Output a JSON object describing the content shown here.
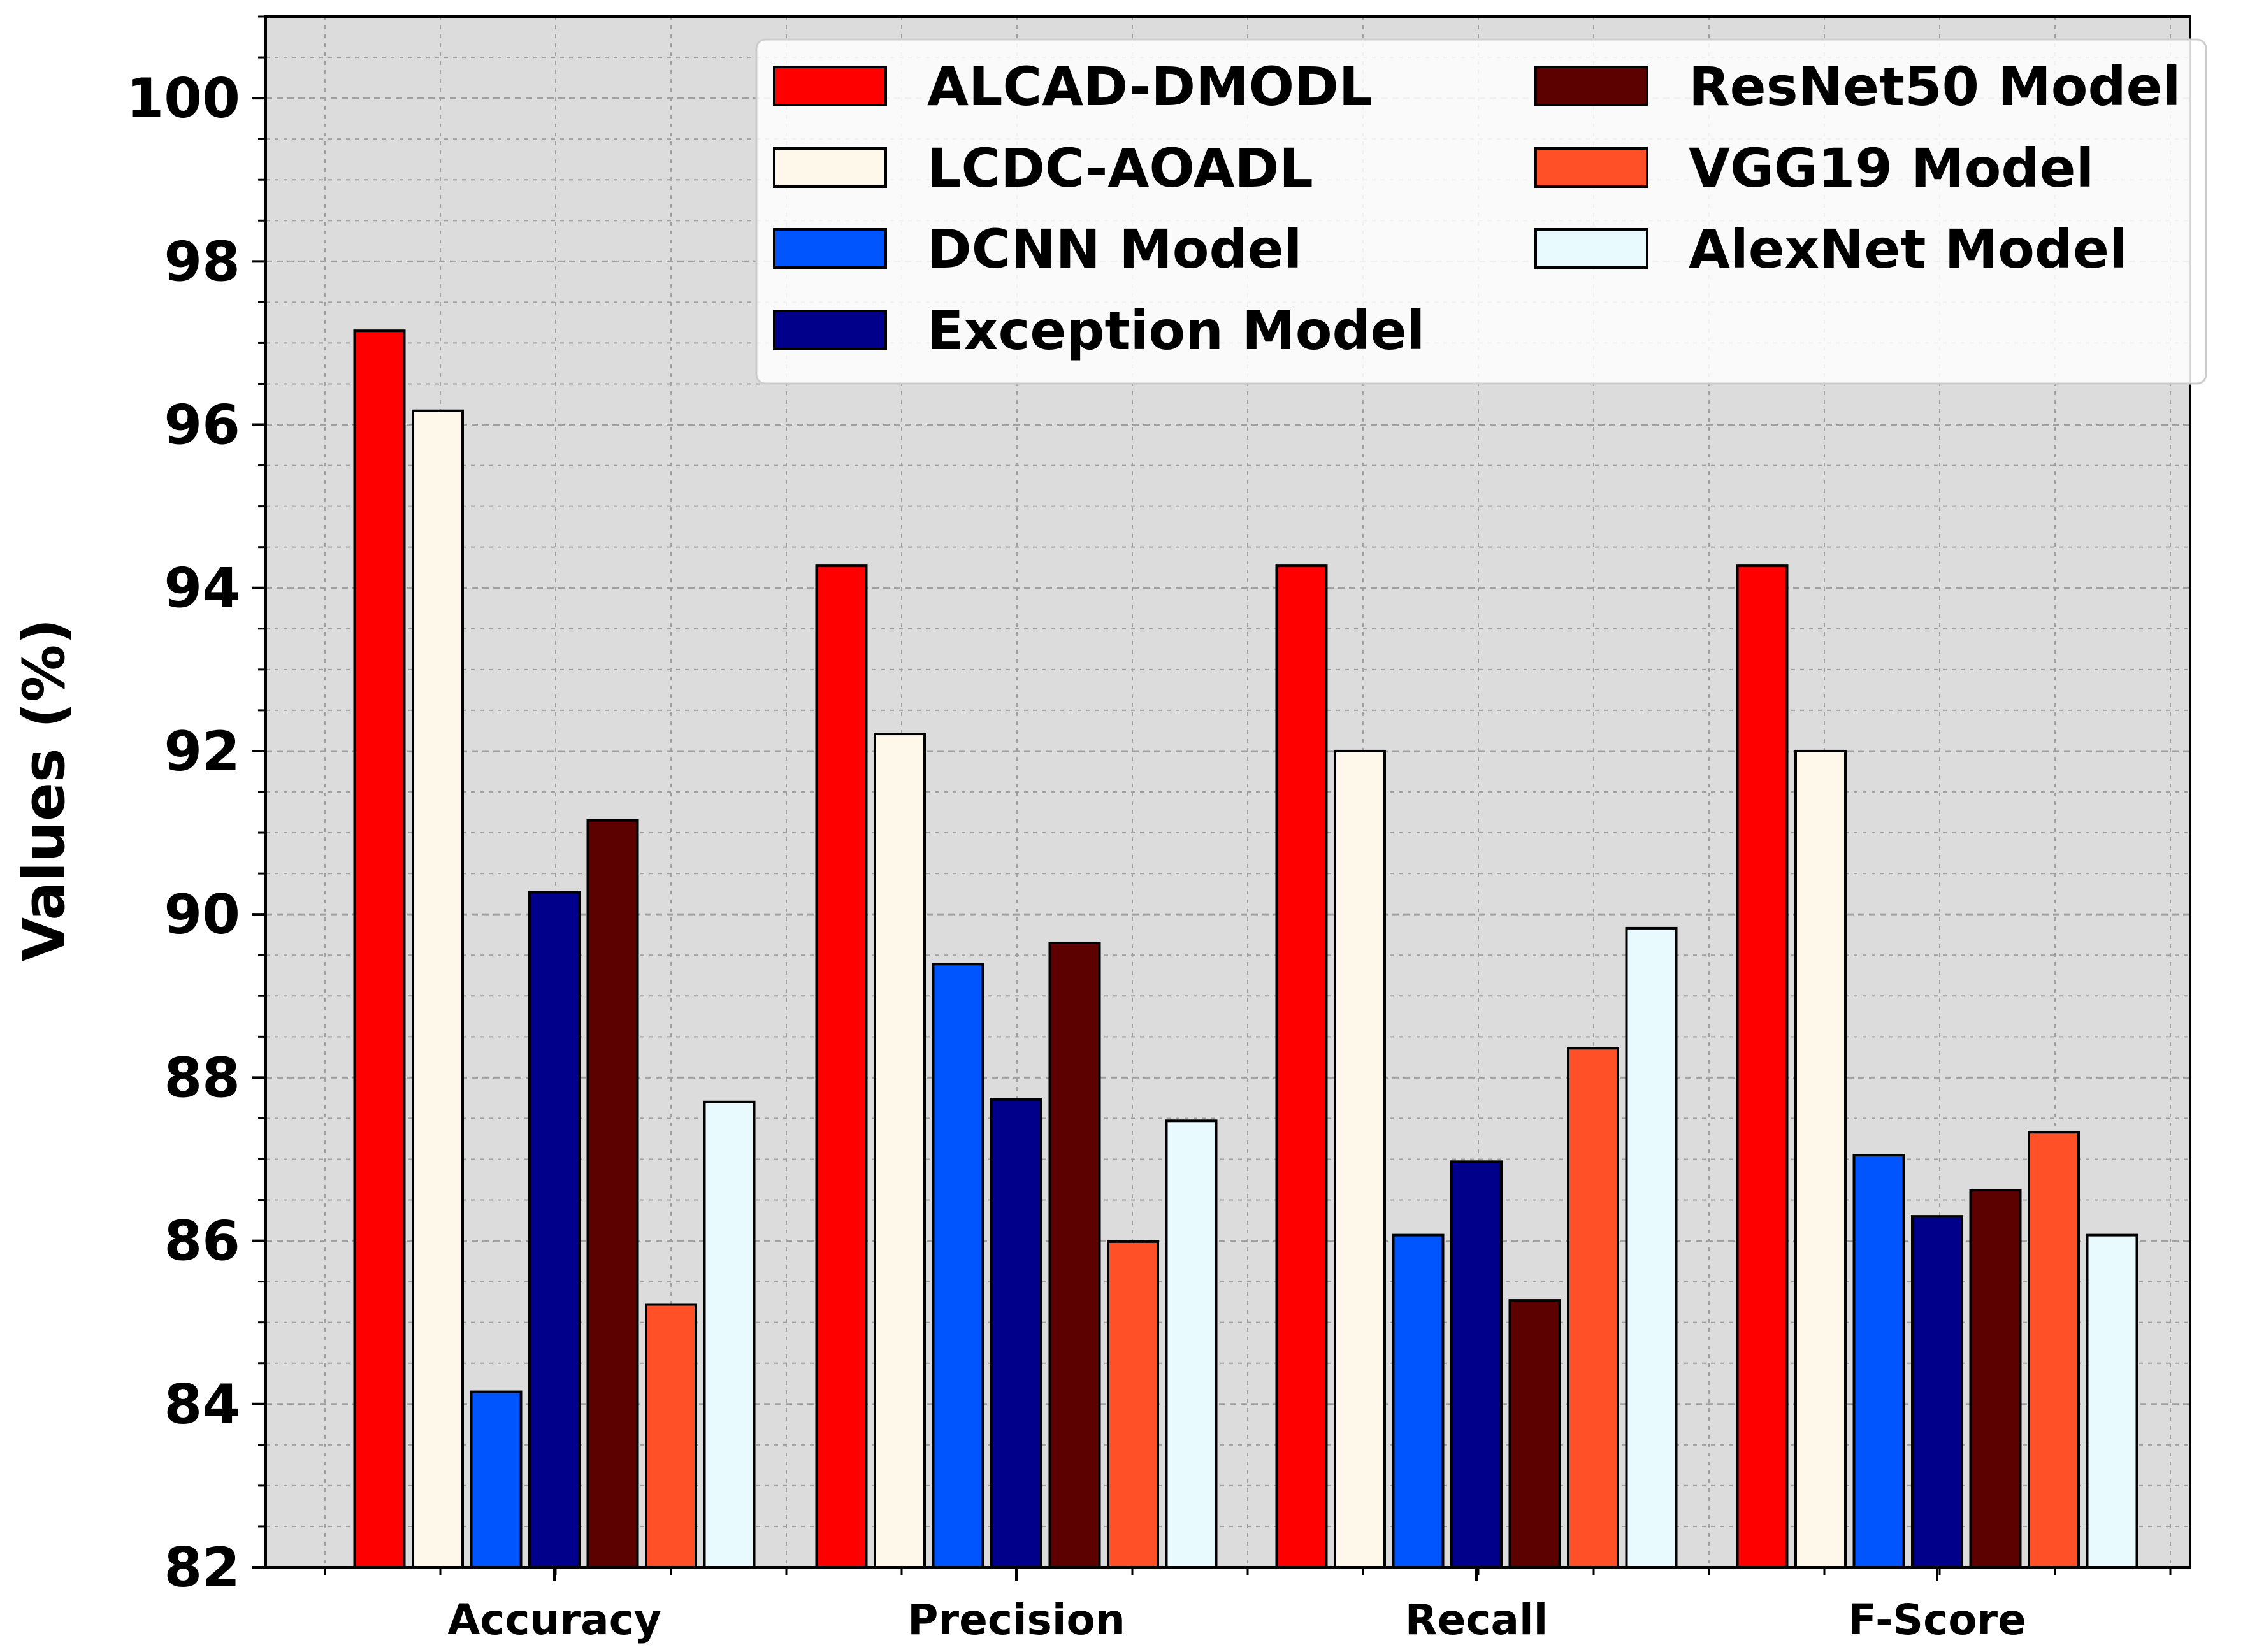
{
  "chart_data": {
    "type": "bar",
    "title": "",
    "xlabel": "",
    "ylabel": "Values (%)",
    "ylim": [
      82,
      101
    ],
    "yticks": [
      82,
      84,
      86,
      88,
      90,
      92,
      94,
      96,
      98,
      100
    ],
    "grid": true,
    "legend_position": "top-right",
    "categories": [
      "Accuracy",
      "Precision",
      "Recall",
      "F-Score"
    ],
    "series": [
      {
        "name": "ALCAD-DMODL",
        "color": "#ff0000",
        "values": [
          97.15,
          94.27,
          94.27,
          94.27
        ]
      },
      {
        "name": "LCDC-AOADL",
        "color": "#fdf8ea",
        "values": [
          96.17,
          92.21,
          92.0,
          92.0
        ]
      },
      {
        "name": "DCNN Model",
        "color": "#0055ff",
        "values": [
          84.15,
          89.39,
          86.07,
          87.05
        ]
      },
      {
        "name": "Exception Model",
        "color": "#00008b",
        "values": [
          90.27,
          87.73,
          86.97,
          86.3
        ]
      },
      {
        "name": "ResNet50 Model",
        "color": "#5c0000",
        "values": [
          91.15,
          89.65,
          85.27,
          86.62
        ]
      },
      {
        "name": "VGG19 Model",
        "color": "#ff5028",
        "values": [
          85.22,
          85.99,
          88.36,
          87.33
        ]
      },
      {
        "name": "AlexNet Model",
        "color": "#e8fafe",
        "values": [
          87.7,
          87.47,
          89.83,
          86.07
        ]
      }
    ]
  },
  "colors": {
    "plot_background": "#dcdcdc",
    "grid": "#a0a0a0",
    "bar_edge": "#000000"
  }
}
